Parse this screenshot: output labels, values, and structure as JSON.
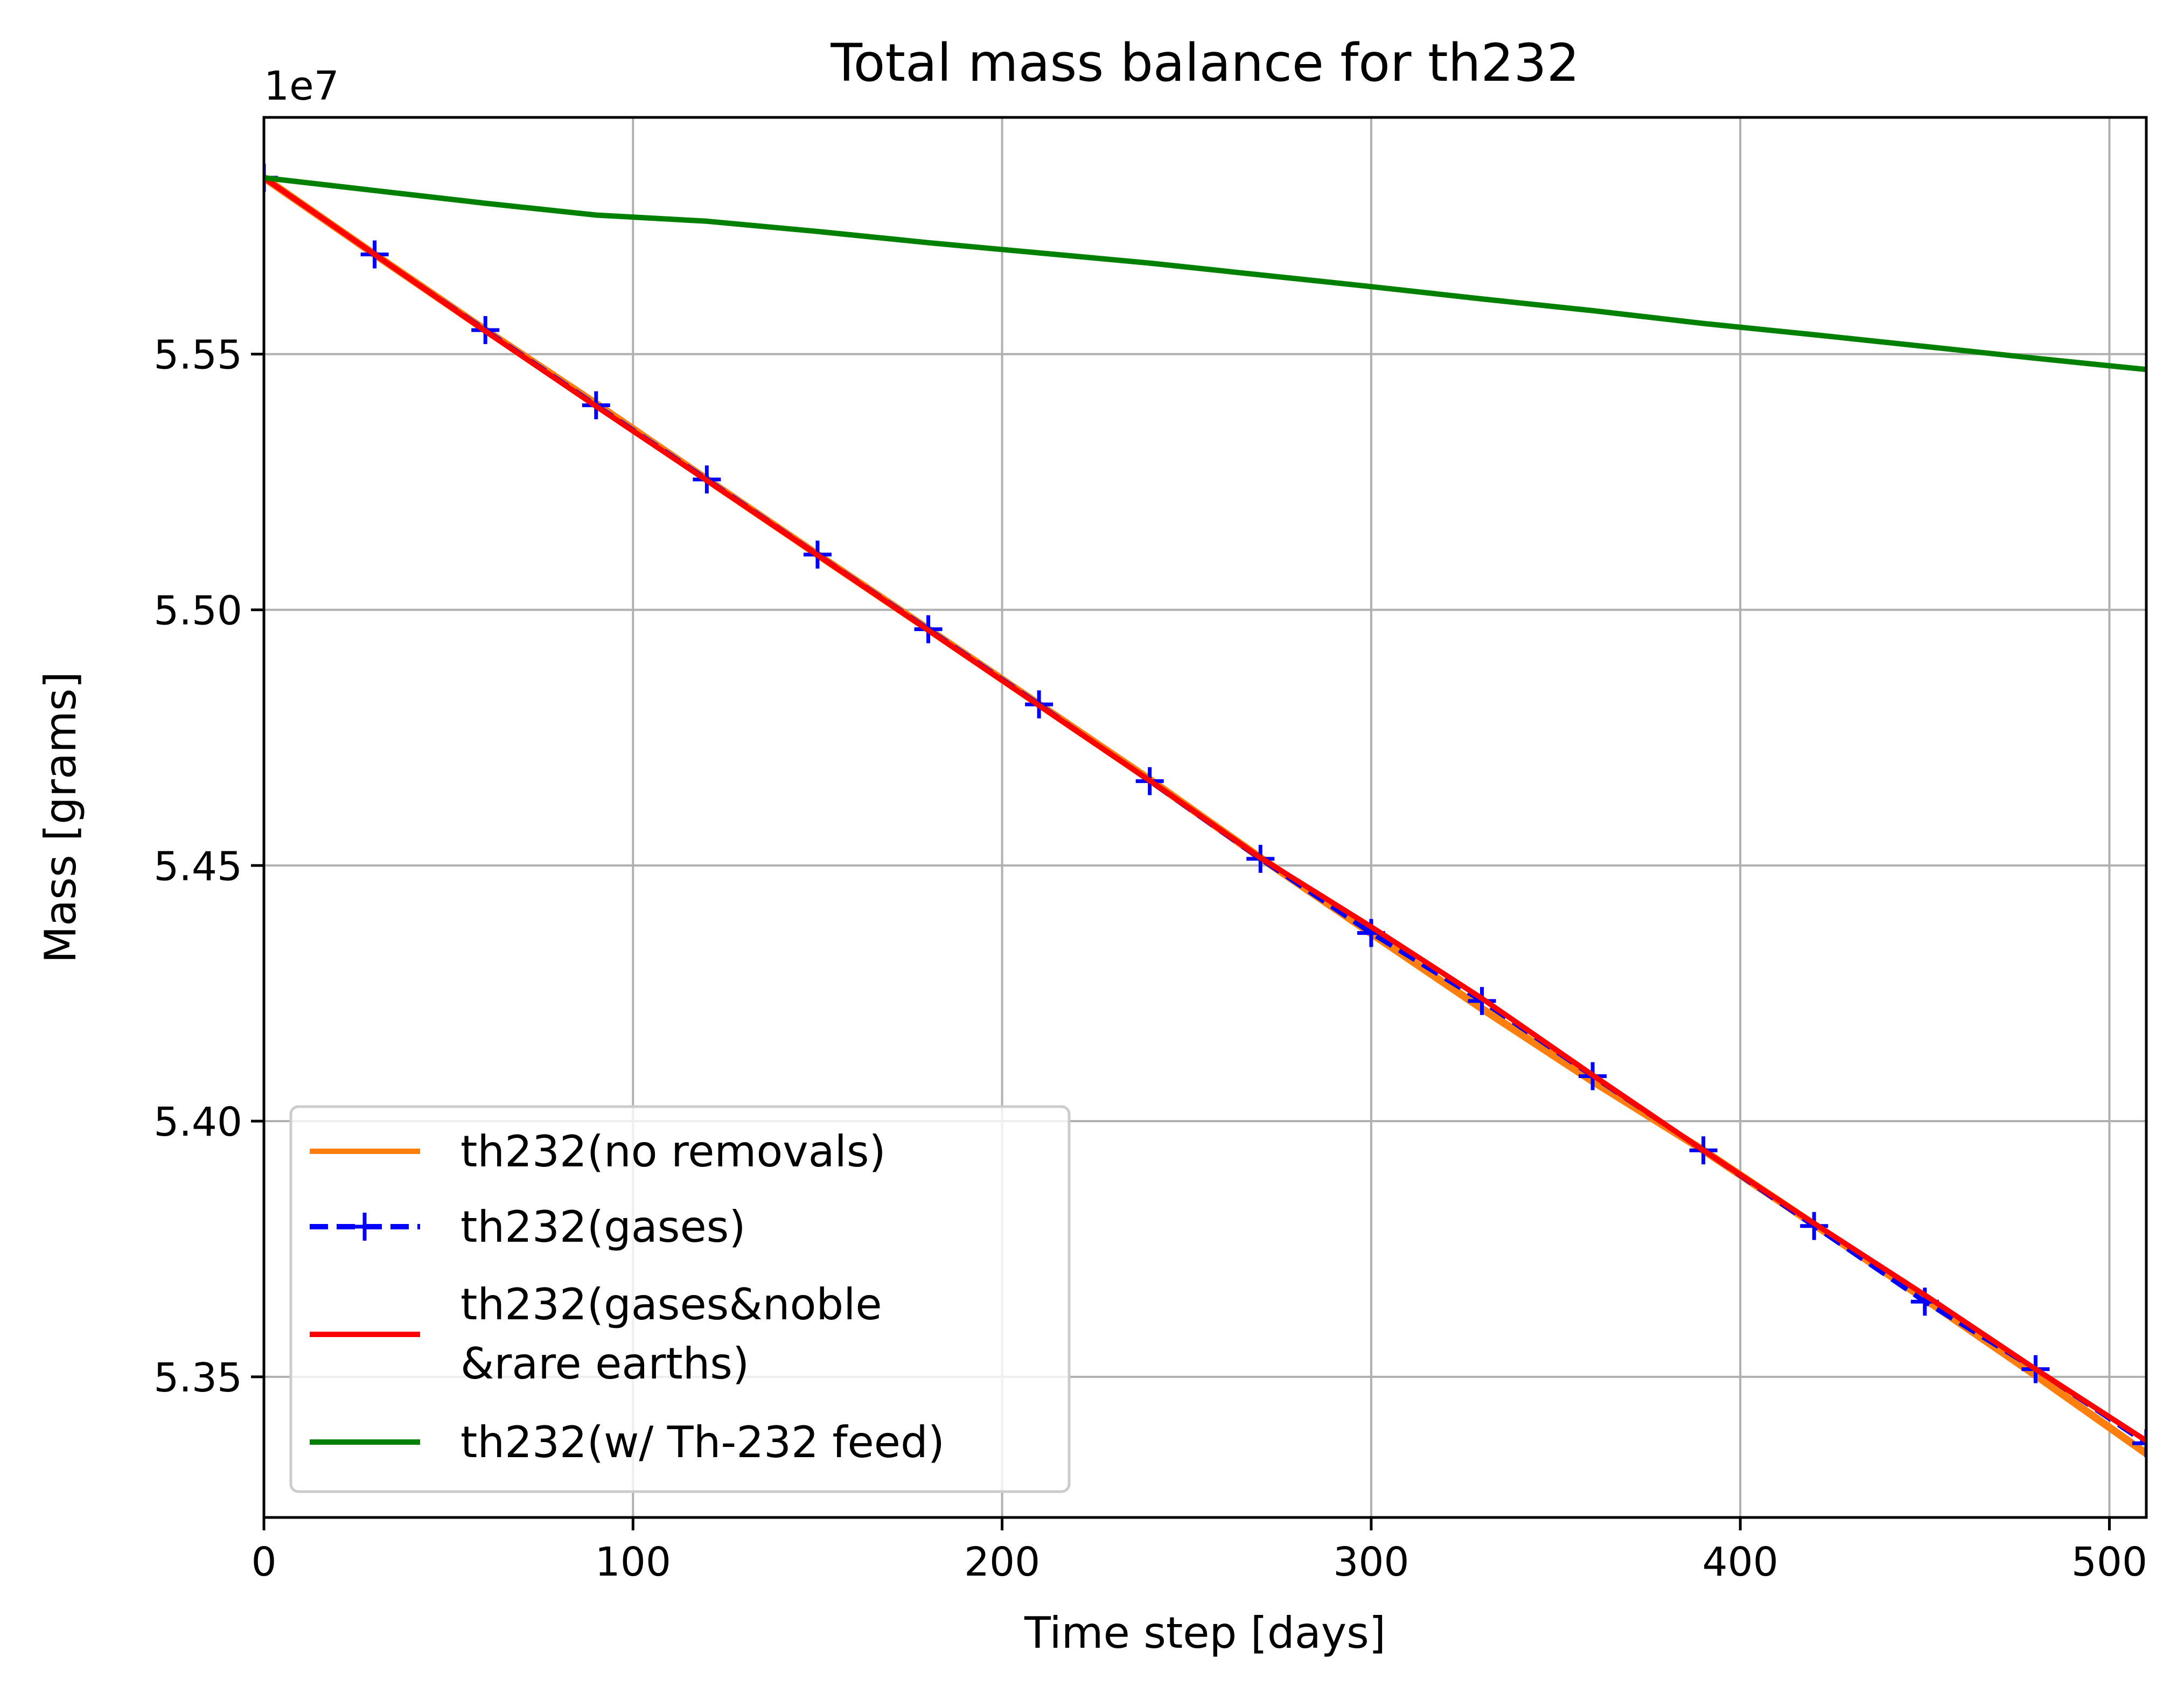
{
  "chart_data": {
    "type": "line",
    "title": "Total mass balance for th232",
    "xlabel": "Time step [days]",
    "ylabel": "Mass [grams]",
    "y_offset_label": "1e7",
    "y_multiplier": 10000000,
    "xlim": [
      0,
      510
    ],
    "ylim": [
      5.3225,
      5.5963
    ],
    "x_ticks": [
      0,
      100,
      200,
      300,
      400,
      500
    ],
    "x_tick_labels": [
      "0",
      "100",
      "200",
      "300",
      "400",
      "500"
    ],
    "y_ticks": [
      5.35,
      5.4,
      5.45,
      5.5,
      5.55
    ],
    "y_tick_labels": [
      "5.35",
      "5.40",
      "5.45",
      "5.50",
      "5.55"
    ],
    "grid": true,
    "legend_position": "lower-left",
    "series": [
      {
        "name": "th232(no removals)",
        "color": "#ff7f0e",
        "style": "solid",
        "marker": "none",
        "x": [
          0,
          30,
          60,
          90,
          120,
          150,
          180,
          210,
          240,
          270,
          300,
          330,
          360,
          390,
          420,
          450,
          480,
          510
        ],
        "y": [
          5.5845,
          5.5695,
          5.5547,
          5.5403,
          5.5255,
          5.5108,
          5.4962,
          5.4815,
          5.4668,
          5.4515,
          5.4367,
          5.422,
          5.4078,
          5.3943,
          5.3798,
          5.3652,
          5.3503,
          5.335
        ]
      },
      {
        "name": "th232(gases)",
        "color": "#0000ff",
        "style": "dashed",
        "marker": "plus",
        "x": [
          0,
          30,
          60,
          90,
          120,
          150,
          180,
          210,
          240,
          270,
          300,
          330,
          360,
          390,
          420,
          450,
          480,
          510
        ],
        "y": [
          5.5845,
          5.5695,
          5.5547,
          5.54,
          5.5255,
          5.5108,
          5.4962,
          5.4815,
          5.4665,
          5.4513,
          5.4368,
          5.4235,
          5.4088,
          5.3943,
          5.3795,
          5.3647,
          5.3515,
          5.337
        ]
      },
      {
        "name": "th232(gases&noble\n&rare earths)",
        "label_lines": [
          "th232(gases&noble",
          "&rare earths)"
        ],
        "color": "#ff0000",
        "style": "solid",
        "marker": "none",
        "x": [
          0,
          30,
          60,
          90,
          120,
          150,
          180,
          210,
          240,
          270,
          300,
          330,
          360,
          390,
          420,
          450,
          480,
          510
        ],
        "y": [
          5.5845,
          5.5695,
          5.5545,
          5.5398,
          5.5253,
          5.5107,
          5.496,
          5.4813,
          5.4666,
          5.4515,
          5.438,
          5.424,
          5.409,
          5.3943,
          5.38,
          5.366,
          5.3515,
          5.3375
        ]
      },
      {
        "name": "th232(w/ Th-232 feed)",
        "color": "#008000",
        "style": "solid",
        "marker": "none",
        "x": [
          0,
          30,
          60,
          90,
          120,
          150,
          180,
          210,
          240,
          270,
          300,
          330,
          360,
          390,
          420,
          450,
          480,
          510
        ],
        "y": [
          5.5845,
          5.582,
          5.5795,
          5.5772,
          5.576,
          5.574,
          5.5718,
          5.5698,
          5.5678,
          5.5655,
          5.5632,
          5.5608,
          5.5585,
          5.556,
          5.5538,
          5.5515,
          5.5492,
          5.547
        ]
      }
    ]
  }
}
